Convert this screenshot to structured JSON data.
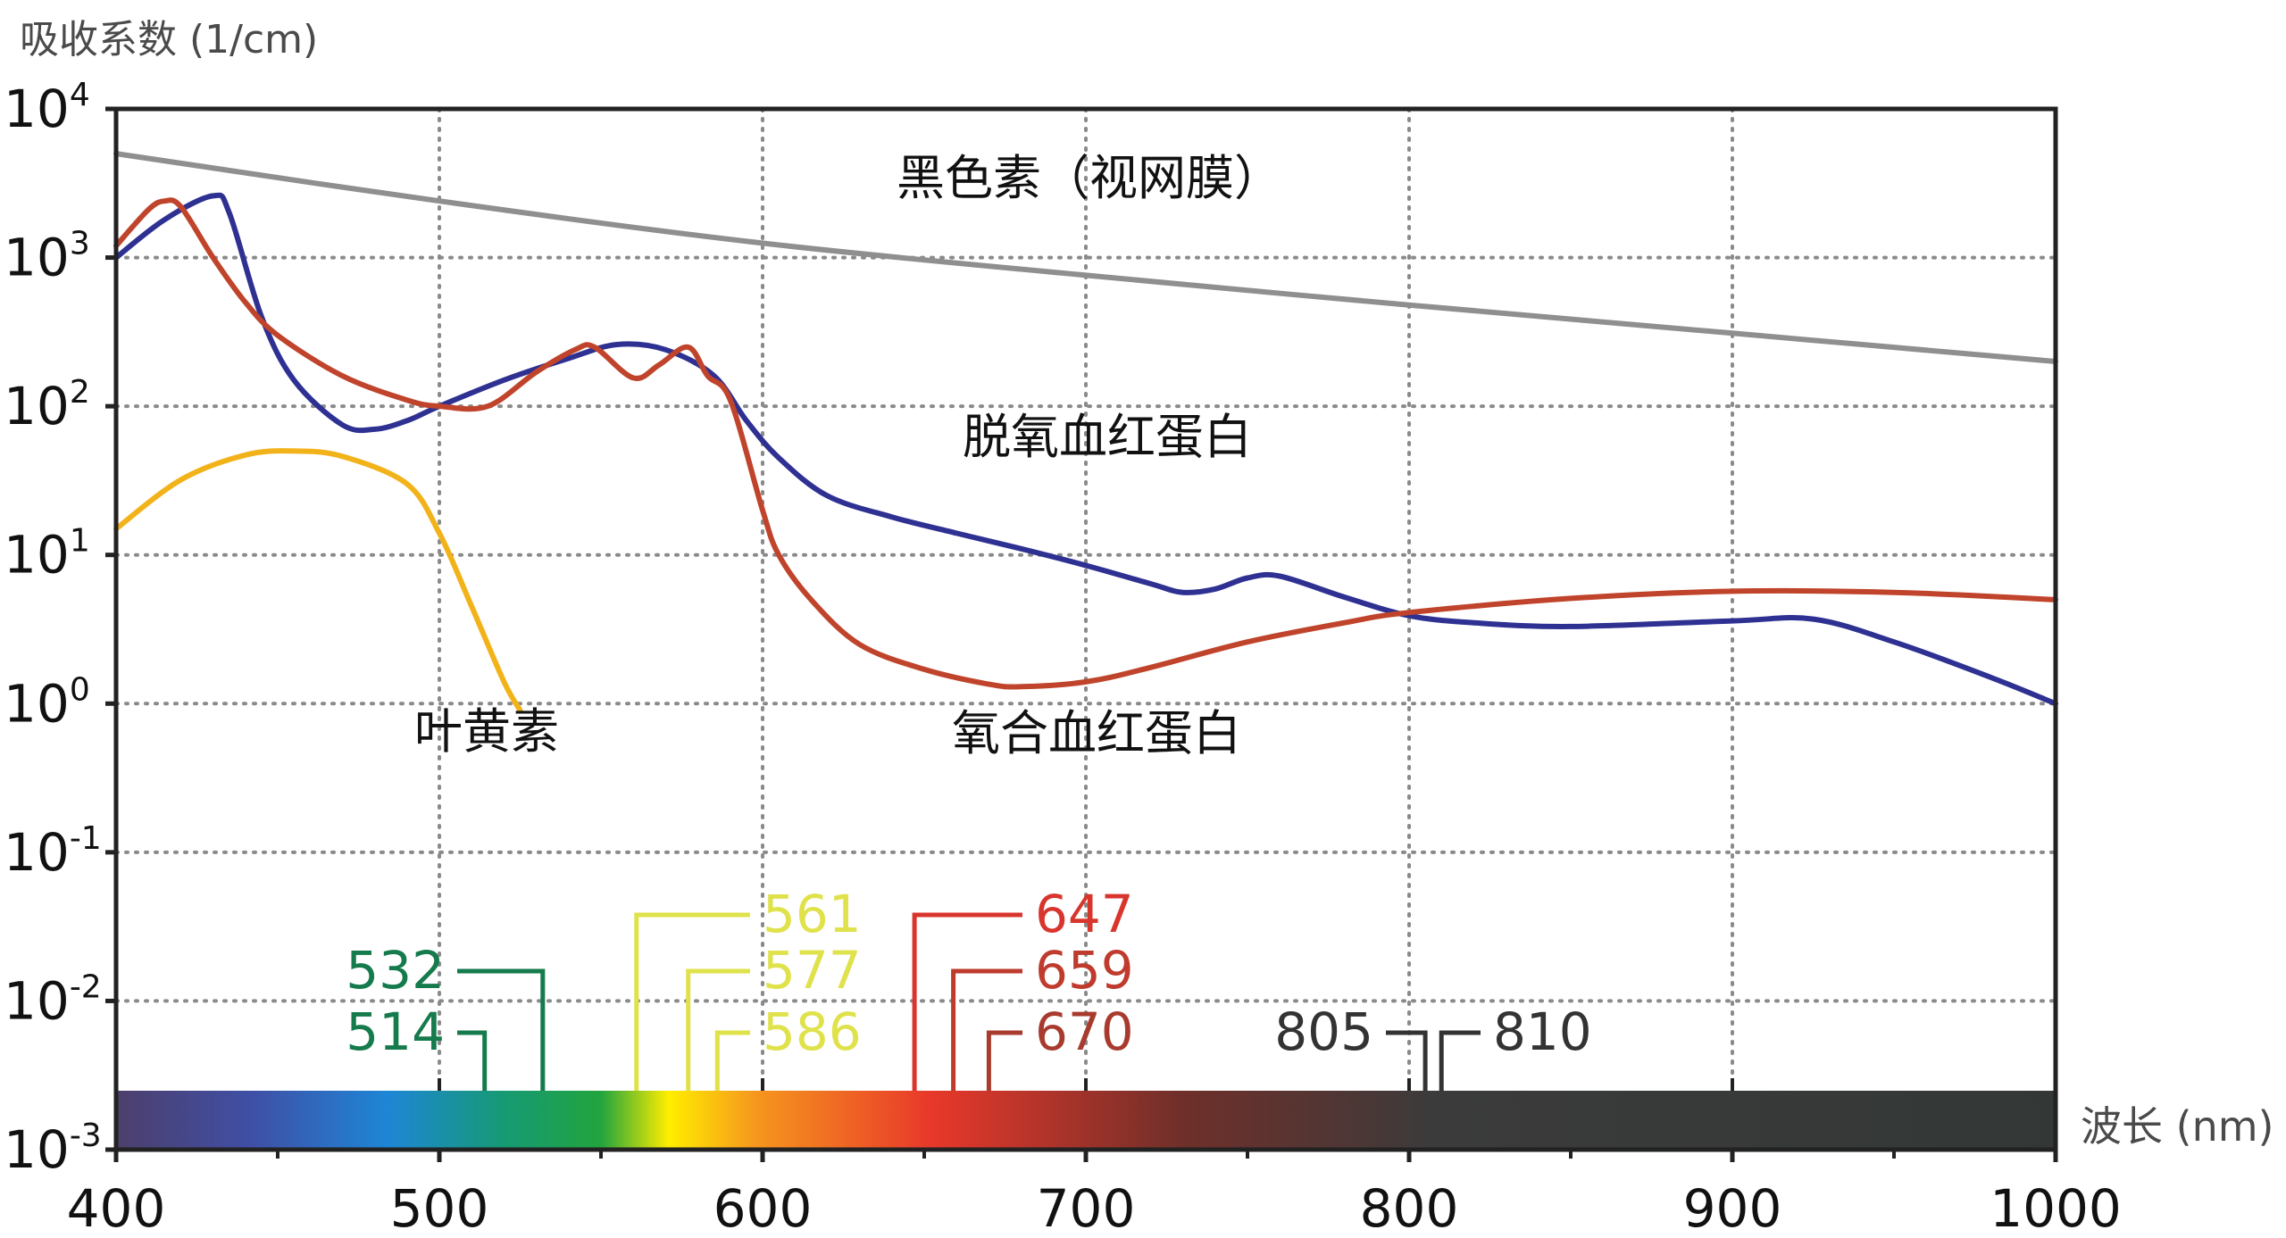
{
  "chart_data": {
    "type": "line",
    "ylabel": "吸收系数 (1/cm)",
    "xlabel": "波长 (nm)",
    "xlim": [
      400,
      1000
    ],
    "ylim_exponent": [
      -3,
      4
    ],
    "y_scale": "log",
    "grid": "dotted",
    "x_ticks": [
      "400",
      "500",
      "600",
      "700",
      "800",
      "900",
      "1000"
    ],
    "y_ticks": [
      {
        "base": "10",
        "exp": "4"
      },
      {
        "base": "10",
        "exp": "3"
      },
      {
        "base": "10",
        "exp": "2"
      },
      {
        "base": "10",
        "exp": "1"
      },
      {
        "base": "10",
        "exp": "0"
      },
      {
        "base": "10",
        "exp": "-1"
      },
      {
        "base": "10",
        "exp": "-2"
      },
      {
        "base": "10",
        "exp": "-3"
      }
    ],
    "series": [
      {
        "name": "黑色素（视网膜）",
        "color": "#8f8f8f",
        "x": [
          400,
          500,
          600,
          700,
          800,
          900,
          1000
        ],
        "y": [
          5000,
          2400,
          1250,
          760,
          480,
          310,
          200
        ]
      },
      {
        "name": "脱氧血红蛋白",
        "color": "#2e3192",
        "x": [
          400,
          415,
          430,
          435,
          445,
          455,
          470,
          480,
          490,
          500,
          520,
          540,
          555,
          570,
          585,
          595,
          605,
          620,
          640,
          660,
          680,
          700,
          720,
          730,
          740,
          750,
          760,
          780,
          800,
          820,
          850,
          900,
          925,
          950,
          980,
          1000
        ],
        "y": [
          1000,
          1800,
          2600,
          2000,
          400,
          150,
          75,
          70,
          80,
          100,
          150,
          210,
          260,
          240,
          160,
          80,
          45,
          25,
          18,
          14,
          11,
          8.5,
          6.4,
          5.6,
          5.9,
          7.0,
          7.2,
          5.2,
          3.9,
          3.5,
          3.3,
          3.6,
          3.7,
          2.6,
          1.5,
          1.0
        ]
      },
      {
        "name": "氧合血红蛋白",
        "color": "#c0442b",
        "x": [
          400,
          410,
          415,
          420,
          430,
          440,
          450,
          470,
          490,
          500,
          515,
          530,
          542,
          548,
          560,
          568,
          577,
          583,
          590,
          600,
          605,
          615,
          630,
          650,
          670,
          680,
          700,
          720,
          750,
          780,
          800,
          850,
          900,
          950,
          1000
        ],
        "y": [
          1200,
          2100,
          2400,
          2200,
          1000,
          500,
          300,
          160,
          110,
          100,
          100,
          170,
          240,
          250,
          155,
          190,
          250,
          160,
          110,
          20,
          10,
          5,
          2.5,
          1.7,
          1.35,
          1.3,
          1.4,
          1.75,
          2.6,
          3.5,
          4.1,
          5.1,
          5.7,
          5.6,
          5.0
        ]
      },
      {
        "name": "叶黄素",
        "color": "#f2b31a",
        "x": [
          400,
          420,
          440,
          455,
          470,
          490,
          500,
          510,
          520,
          525
        ],
        "y": [
          15,
          32,
          47,
          50,
          46,
          30,
          14,
          4.5,
          1.4,
          0.9
        ]
      }
    ],
    "curve_labels": [
      {
        "text": "黑色素（视网膜）",
        "series": 0
      },
      {
        "text": "脱氧血红蛋白",
        "series": 1
      },
      {
        "text": "氧合血红蛋白",
        "series": 2
      },
      {
        "text": "叶黄素",
        "series": 3
      }
    ],
    "laser_markers": [
      {
        "label": "532",
        "wavelength": 532,
        "color": "#157a4c",
        "side": "left",
        "level": 2
      },
      {
        "label": "514",
        "wavelength": 514,
        "color": "#157a4c",
        "side": "left",
        "level": 3
      },
      {
        "label": "561",
        "wavelength": 561,
        "color": "#dfe24a",
        "side": "right",
        "level": 1
      },
      {
        "label": "577",
        "wavelength": 577,
        "color": "#dfe24a",
        "side": "right",
        "level": 2
      },
      {
        "label": "586",
        "wavelength": 586,
        "color": "#dfe24a",
        "side": "right",
        "level": 3
      },
      {
        "label": "647",
        "wavelength": 647,
        "color": "#d8352d",
        "side": "right",
        "level": 1
      },
      {
        "label": "659",
        "wavelength": 659,
        "color": "#bf3b2d",
        "side": "right",
        "level": 2
      },
      {
        "label": "670",
        "wavelength": 670,
        "color": "#a83a2e",
        "side": "right",
        "level": 3
      },
      {
        "label": "805",
        "wavelength": 805,
        "color": "#333333",
        "side": "left",
        "level": 3
      },
      {
        "label": "810",
        "wavelength": 810,
        "color": "#333333",
        "side": "right",
        "level": 3
      }
    ],
    "spectrum_bar_colors": [
      "#4d3f6b",
      "#3f4fa6",
      "#1e86d6",
      "#169a73",
      "#22a43e",
      "#ffee00",
      "#f6961e",
      "#e8382a",
      "#6f2f2a",
      "#3b3b3b",
      "#333836"
    ]
  }
}
